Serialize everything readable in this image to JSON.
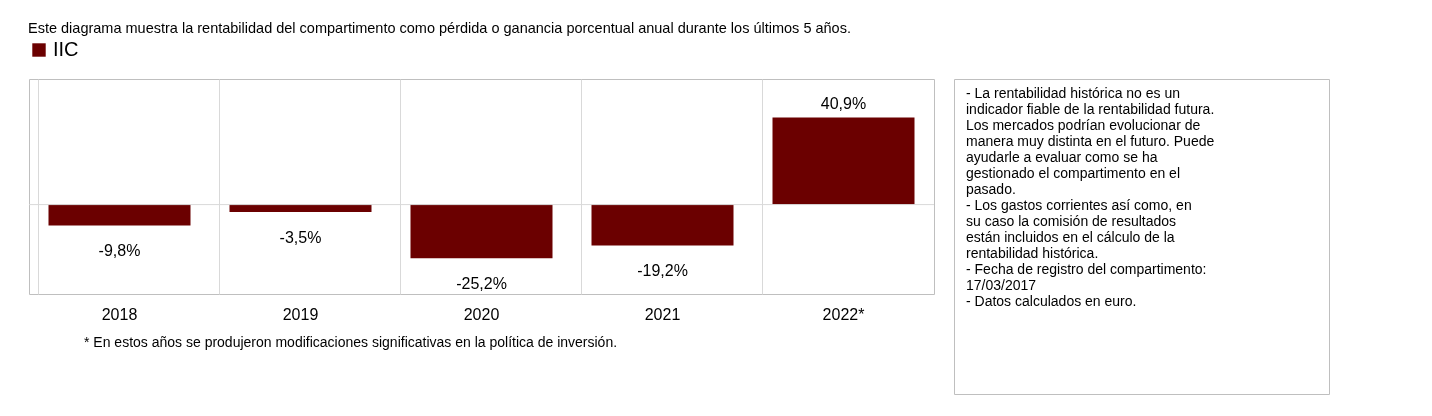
{
  "chart_data": {
    "type": "bar",
    "title": "Este diagrama muestra la rentabilidad del compartimento como pérdida o ganancia porcentual anual durante los últimos 5 años.",
    "categories": [
      "2018",
      "2019",
      "2020",
      "2021",
      "2022*"
    ],
    "series": [
      {
        "name": "IIC",
        "color": "#6b0000",
        "values": [
          -9.8,
          -3.5,
          -25.2,
          -19.2,
          40.9
        ],
        "value_labels": [
          "-9,8%",
          "-3,5%",
          "-25,2%",
          "-19,2%",
          "40,9%"
        ]
      }
    ],
    "ylim": [
      -42,
      59
    ],
    "tick_labels": "x",
    "grid": "x",
    "legend": "top",
    "annotations": [
      "* En estos años se produjeron modificaciones significativas en la política de inversión.",
      "- La rentabilidad histórica no es un\nindicador fiable de la rentabilidad futura.\nLos mercados podrían evolucionar de\nmanera muy distinta en el futuro. Puede\nayudarle a evaluar como se ha\ngestionado el compartimento en el\npasado.\n- Los gastos corrientes así como, en\nsu caso la comisión de resultados\nestán incluidos en el cálculo de la\nrentabilidad histórica.\n- Fecha de registro del compartimento:\n  17/03/2017\n- Datos calculados en euro."
    ]
  }
}
